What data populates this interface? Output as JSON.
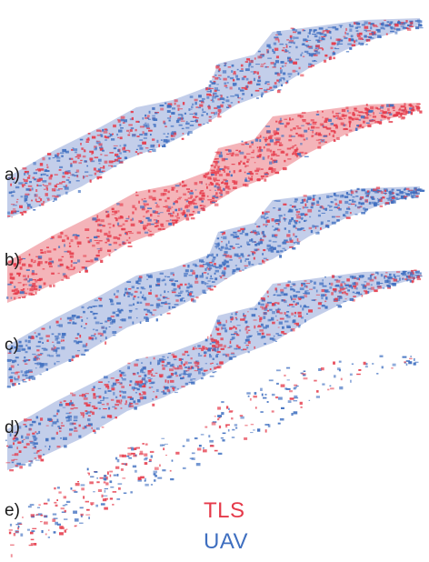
{
  "panels": [
    {
      "label": "a)",
      "style": "mixed"
    },
    {
      "label": "b)",
      "style": "red"
    },
    {
      "label": "c)",
      "style": "blue"
    },
    {
      "label": "d)",
      "style": "mixed"
    },
    {
      "label": "e)",
      "style": "sparse"
    }
  ],
  "legend": {
    "tls_label": "TLS",
    "uav_label": "UAV",
    "tls_color": "#e53a4a",
    "uav_color": "#3f6fc0"
  }
}
